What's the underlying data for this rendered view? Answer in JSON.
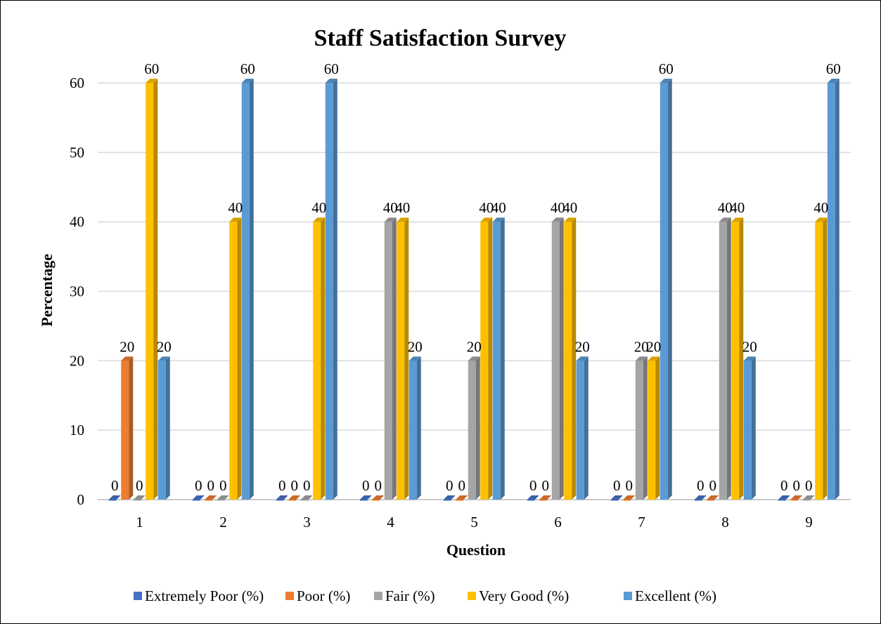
{
  "chart_data": {
    "type": "bar",
    "title": "Staff Satisfaction Survey",
    "xlabel": "Question",
    "ylabel": "Percentage",
    "ylim": [
      0,
      60
    ],
    "yticks": [
      0,
      10,
      20,
      30,
      40,
      50,
      60
    ],
    "categories": [
      "1",
      "2",
      "3",
      "4",
      "5",
      "6",
      "7",
      "8",
      "9"
    ],
    "grid": true,
    "legend_position": "bottom",
    "series": [
      {
        "name": "Extremely Poor (%)",
        "color": "#4472C4",
        "values": [
          0,
          0,
          0,
          0,
          0,
          0,
          0,
          0,
          0
        ],
        "labels_shown": [
          true,
          true,
          true,
          true,
          true,
          true,
          true,
          true,
          true
        ]
      },
      {
        "name": "Poor (%)",
        "color": "#ED7D31",
        "values": [
          20,
          0,
          0,
          0,
          0,
          0,
          0,
          0,
          0
        ],
        "labels_shown": [
          true,
          true,
          true,
          true,
          true,
          true,
          true,
          true,
          true
        ]
      },
      {
        "name": "Fair (%)",
        "color": "#A5A5A5",
        "values": [
          0,
          0,
          0,
          40,
          20,
          40,
          20,
          40,
          0
        ],
        "labels_shown": [
          true,
          true,
          true,
          true,
          true,
          true,
          true,
          true,
          true
        ]
      },
      {
        "name": "Very Good (%)",
        "color": "#FFC000",
        "values": [
          60,
          40,
          40,
          40,
          40,
          40,
          20,
          40,
          40
        ],
        "labels_shown": [
          true,
          true,
          true,
          true,
          true,
          true,
          true,
          true,
          true
        ]
      },
      {
        "name": "Excellent (%)",
        "color": "#5B9BD5",
        "values": [
          20,
          60,
          60,
          20,
          40,
          20,
          60,
          20,
          60
        ],
        "labels_shown": [
          true,
          true,
          true,
          true,
          true,
          true,
          true,
          true,
          true
        ]
      }
    ]
  }
}
